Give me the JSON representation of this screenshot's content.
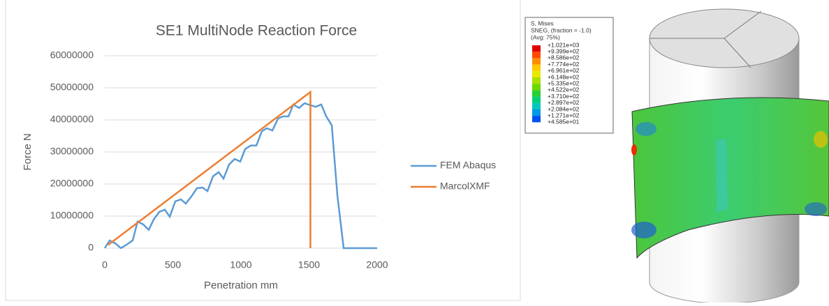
{
  "chart_data": {
    "type": "line",
    "title": "SE1 MultiNode Reaction Force",
    "x_label": "Penetration mm",
    "y_label": "Force N",
    "xlim": [
      0,
      2000
    ],
    "xticks": [
      0,
      500,
      1000,
      1500,
      2000
    ],
    "ylim": [
      0,
      60000000
    ],
    "yticks": [
      0,
      10000000,
      20000000,
      30000000,
      40000000,
      50000000,
      60000000
    ],
    "grid": true,
    "legend": "right",
    "series": [
      {
        "name": "FEM Abaqus",
        "color": "#5b9bd5",
        "x": [
          0,
          36,
          77,
          118,
          154,
          205,
          241,
          282,
          323,
          359,
          400,
          441,
          477,
          518,
          559,
          595,
          636,
          677,
          718,
          754,
          795,
          836,
          872,
          913,
          954,
          995,
          1031,
          1072,
          1113,
          1154,
          1190,
          1231,
          1272,
          1308,
          1349,
          1385,
          1426,
          1467,
          1508,
          1549,
          1590,
          1626,
          1667,
          1708,
          1754,
          2000
        ],
        "values": [
          0,
          2400000,
          1500000,
          0,
          900000,
          2400000,
          8300000,
          7400000,
          5700000,
          8900000,
          11300000,
          12000000,
          9800000,
          14600000,
          15200000,
          13900000,
          16100000,
          18700000,
          18900000,
          17800000,
          22400000,
          23700000,
          21700000,
          26100000,
          27800000,
          27000000,
          30900000,
          32000000,
          32000000,
          36500000,
          37400000,
          36700000,
          40400000,
          41100000,
          41100000,
          44800000,
          43700000,
          45200000,
          44600000,
          44100000,
          44800000,
          41100000,
          38300000,
          16500000,
          0,
          0
        ]
      },
      {
        "name": "MarcolXMF",
        "color": "#ed7d31",
        "x": [
          25,
          1510,
          1510
        ],
        "values": [
          1000000,
          48700000,
          0
        ]
      }
    ]
  },
  "figure": {
    "legend_title": [
      "S, Mises",
      "SNEG, (fraction = -1.0)",
      "(Avg: 75%)"
    ],
    "levels": [
      "+1.021e+03",
      "+9.399e+02",
      "+8.586e+02",
      "+7.774e+02",
      "+6.961e+02",
      "+6.148e+02",
      "+5.335e+02",
      "+4.522e+02",
      "+3.710e+02",
      "+2.897e+02",
      "+2.084e+02",
      "+1.271e+02",
      "+4.585e+01"
    ],
    "colors": [
      "#e00000",
      "#ff4a00",
      "#ff8c00",
      "#ffc800",
      "#e8e800",
      "#a8e000",
      "#6cd800",
      "#28d030",
      "#00d07a",
      "#00c8c0",
      "#0098e8",
      "#0050f0",
      "#0010c8"
    ]
  }
}
